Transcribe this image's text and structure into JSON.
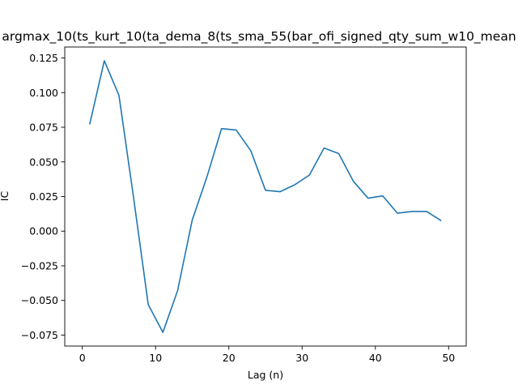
{
  "chart_data": {
    "type": "line",
    "title": "argmax_10(ts_kurt_10(ta_dema_8(ts_sma_55(bar_ofi_signed_qty_sum_w10_mean",
    "xlabel": "Lag (n)",
    "ylabel": "IC",
    "xlim": [
      -2.4,
      52.4
    ],
    "ylim": [
      -0.0829,
      0.1329
    ],
    "xticks": [
      0,
      10,
      20,
      30,
      40,
      50
    ],
    "yticks": [
      -0.075,
      -0.05,
      -0.025,
      0.0,
      0.025,
      0.05,
      0.075,
      0.1,
      0.125
    ],
    "xtick_labels": [
      "0",
      "10",
      "20",
      "30",
      "40",
      "50"
    ],
    "ytick_labels": [
      "−0.075",
      "−0.050",
      "−0.025",
      "0.000",
      "0.025",
      "0.050",
      "0.075",
      "0.100",
      "0.125"
    ],
    "grid": false,
    "series": [
      {
        "color": "#1f77b4",
        "x": [
          1,
          3,
          5,
          7,
          9,
          11,
          13,
          15,
          17,
          19,
          21,
          23,
          25,
          27,
          29,
          31,
          33,
          35,
          37,
          39,
          41,
          43,
          45,
          47,
          49
        ],
        "y": [
          0.077,
          0.123,
          0.098,
          0.024,
          -0.053,
          -0.073,
          -0.043,
          0.008,
          0.039,
          0.074,
          0.073,
          0.058,
          0.0295,
          0.0285,
          0.0335,
          0.0405,
          0.06,
          0.056,
          0.036,
          0.0238,
          0.0255,
          0.013,
          0.0142,
          0.0142,
          0.0075
        ]
      }
    ]
  }
}
